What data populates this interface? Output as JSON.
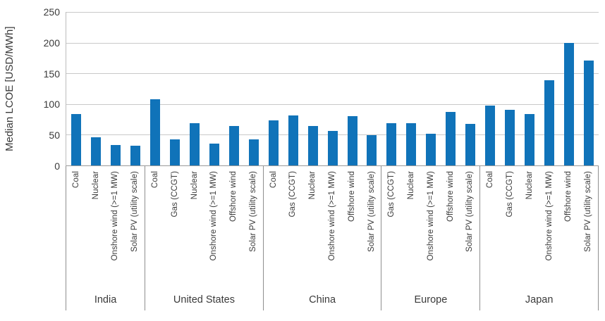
{
  "chart_data": {
    "type": "bar",
    "title": "",
    "ylabel": "Median LCOE [USD/MWh]",
    "xlabel": "",
    "ylim": [
      0,
      250
    ],
    "yticks": [
      0,
      50,
      100,
      150,
      200,
      250
    ],
    "grid": "horizontal",
    "legend": "none",
    "bar_color": "#1073b9",
    "groups": [
      {
        "name": "India",
        "bars": [
          {
            "label": "Coal",
            "value": 84
          },
          {
            "label": "Nuclear",
            "value": 46
          },
          {
            "label": "Onshore wind (>=1 MW)",
            "value": 33
          },
          {
            "label": "Solar PV (utility scale)",
            "value": 32
          }
        ]
      },
      {
        "name": "United States",
        "bars": [
          {
            "label": "Coal",
            "value": 108
          },
          {
            "label": "Gas (CCGT)",
            "value": 42
          },
          {
            "label": "Nuclear",
            "value": 69
          },
          {
            "label": "Onshore wind (>=1 MW)",
            "value": 36
          },
          {
            "label": "Offshore wind",
            "value": 64
          },
          {
            "label": "Solar PV (utility scale)",
            "value": 42
          }
        ]
      },
      {
        "name": "China",
        "bars": [
          {
            "label": "Coal",
            "value": 73
          },
          {
            "label": "Gas (CCGT)",
            "value": 82
          },
          {
            "label": "Nuclear",
            "value": 64
          },
          {
            "label": "Onshore wind (>=1 MW)",
            "value": 56
          },
          {
            "label": "Offshore wind",
            "value": 80
          },
          {
            "label": "Solar PV (utility scale)",
            "value": 49
          }
        ]
      },
      {
        "name": "Europe",
        "bars": [
          {
            "label": "Gas (CCGT)",
            "value": 69
          },
          {
            "label": "Nuclear",
            "value": 69
          },
          {
            "label": "Onshore wind (>=1 MW)",
            "value": 52
          },
          {
            "label": "Offshore wind",
            "value": 87
          },
          {
            "label": "Solar PV (utility scale)",
            "value": 68
          }
        ]
      },
      {
        "name": "Japan",
        "bars": [
          {
            "label": "Coal",
            "value": 97
          },
          {
            "label": "Gas (CCGT)",
            "value": 91
          },
          {
            "label": "Nuclear",
            "value": 84
          },
          {
            "label": "Onshore wind (>=1 MW)",
            "value": 139
          },
          {
            "label": "Offshore wind",
            "value": 200
          },
          {
            "label": "Solar PV (utility scale)",
            "value": 171
          }
        ]
      }
    ]
  }
}
